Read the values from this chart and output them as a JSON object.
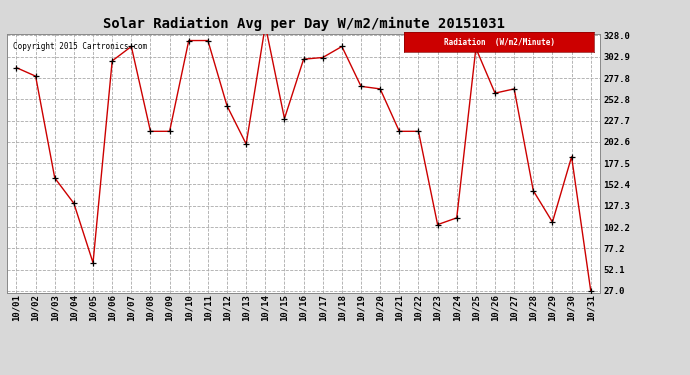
{
  "title": "Solar Radiation Avg per Day W/m2/minute 20151031",
  "copyright": "Copyright 2015 Cartronics.com",
  "legend_label": "Radiation  (W/m2/Minute)",
  "dates": [
    "10/01",
    "10/02",
    "10/03",
    "10/04",
    "10/05",
    "10/06",
    "10/07",
    "10/08",
    "10/09",
    "10/10",
    "10/11",
    "10/12",
    "10/13",
    "10/14",
    "10/15",
    "10/16",
    "10/17",
    "10/18",
    "10/19",
    "10/20",
    "10/21",
    "10/22",
    "10/23",
    "10/24",
    "10/25",
    "10/26",
    "10/27",
    "10/28",
    "10/29",
    "10/30",
    "10/31"
  ],
  "values": [
    290,
    280,
    160,
    130,
    60,
    298,
    315,
    215,
    215,
    322,
    322,
    245,
    200,
    340,
    230,
    300,
    302,
    315,
    268,
    265,
    215,
    215,
    105,
    113,
    313,
    260,
    265,
    145,
    108,
    185,
    27
  ],
  "line_color": "#cc0000",
  "marker_color": "black",
  "bg_color": "#d8d8d8",
  "plot_bg_color": "#ffffff",
  "grid_color": "#aaaaaa",
  "title_fontsize": 10,
  "tick_fontsize": 6.5,
  "ylim_min": 27.0,
  "ylim_max": 328.0,
  "yticks": [
    27.0,
    52.1,
    77.2,
    102.2,
    127.3,
    152.4,
    177.5,
    202.6,
    227.7,
    252.8,
    277.8,
    302.9,
    328.0
  ],
  "legend_bg": "#cc0000",
  "legend_text_color": "#ffffff"
}
